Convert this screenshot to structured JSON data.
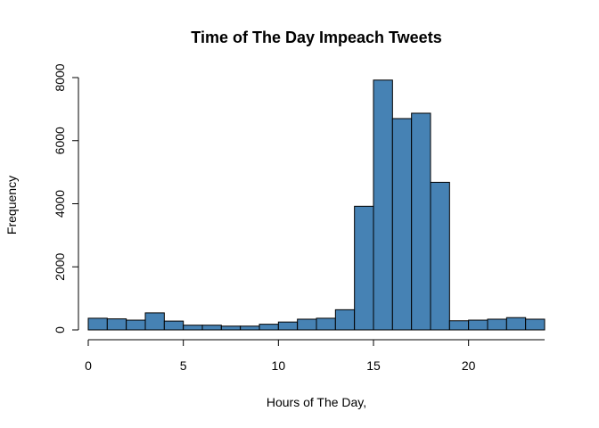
{
  "chart_data": {
    "type": "bar",
    "title": "Time of The Day Impeach Tweets",
    "xlabel": "Hours of The Day,",
    "ylabel": "Frequency",
    "bin_edges": [
      0,
      1,
      2,
      3,
      4,
      5,
      6,
      7,
      8,
      9,
      10,
      11,
      12,
      13,
      14,
      15,
      16,
      17,
      18,
      19,
      20,
      21,
      22,
      23,
      24
    ],
    "values": [
      370,
      350,
      310,
      540,
      280,
      150,
      150,
      120,
      120,
      180,
      250,
      340,
      370,
      640,
      3920,
      7920,
      6700,
      6870,
      4680,
      290,
      310,
      340,
      390,
      340
    ],
    "xlim": [
      0,
      24
    ],
    "ylim": [
      0,
      8000
    ],
    "xticks": [
      0,
      5,
      10,
      15,
      20
    ],
    "yticks": [
      0,
      2000,
      4000,
      6000,
      8000
    ],
    "grid": false,
    "legend": "none",
    "bar_color": "#4682B4",
    "edge_color": "#000000"
  }
}
